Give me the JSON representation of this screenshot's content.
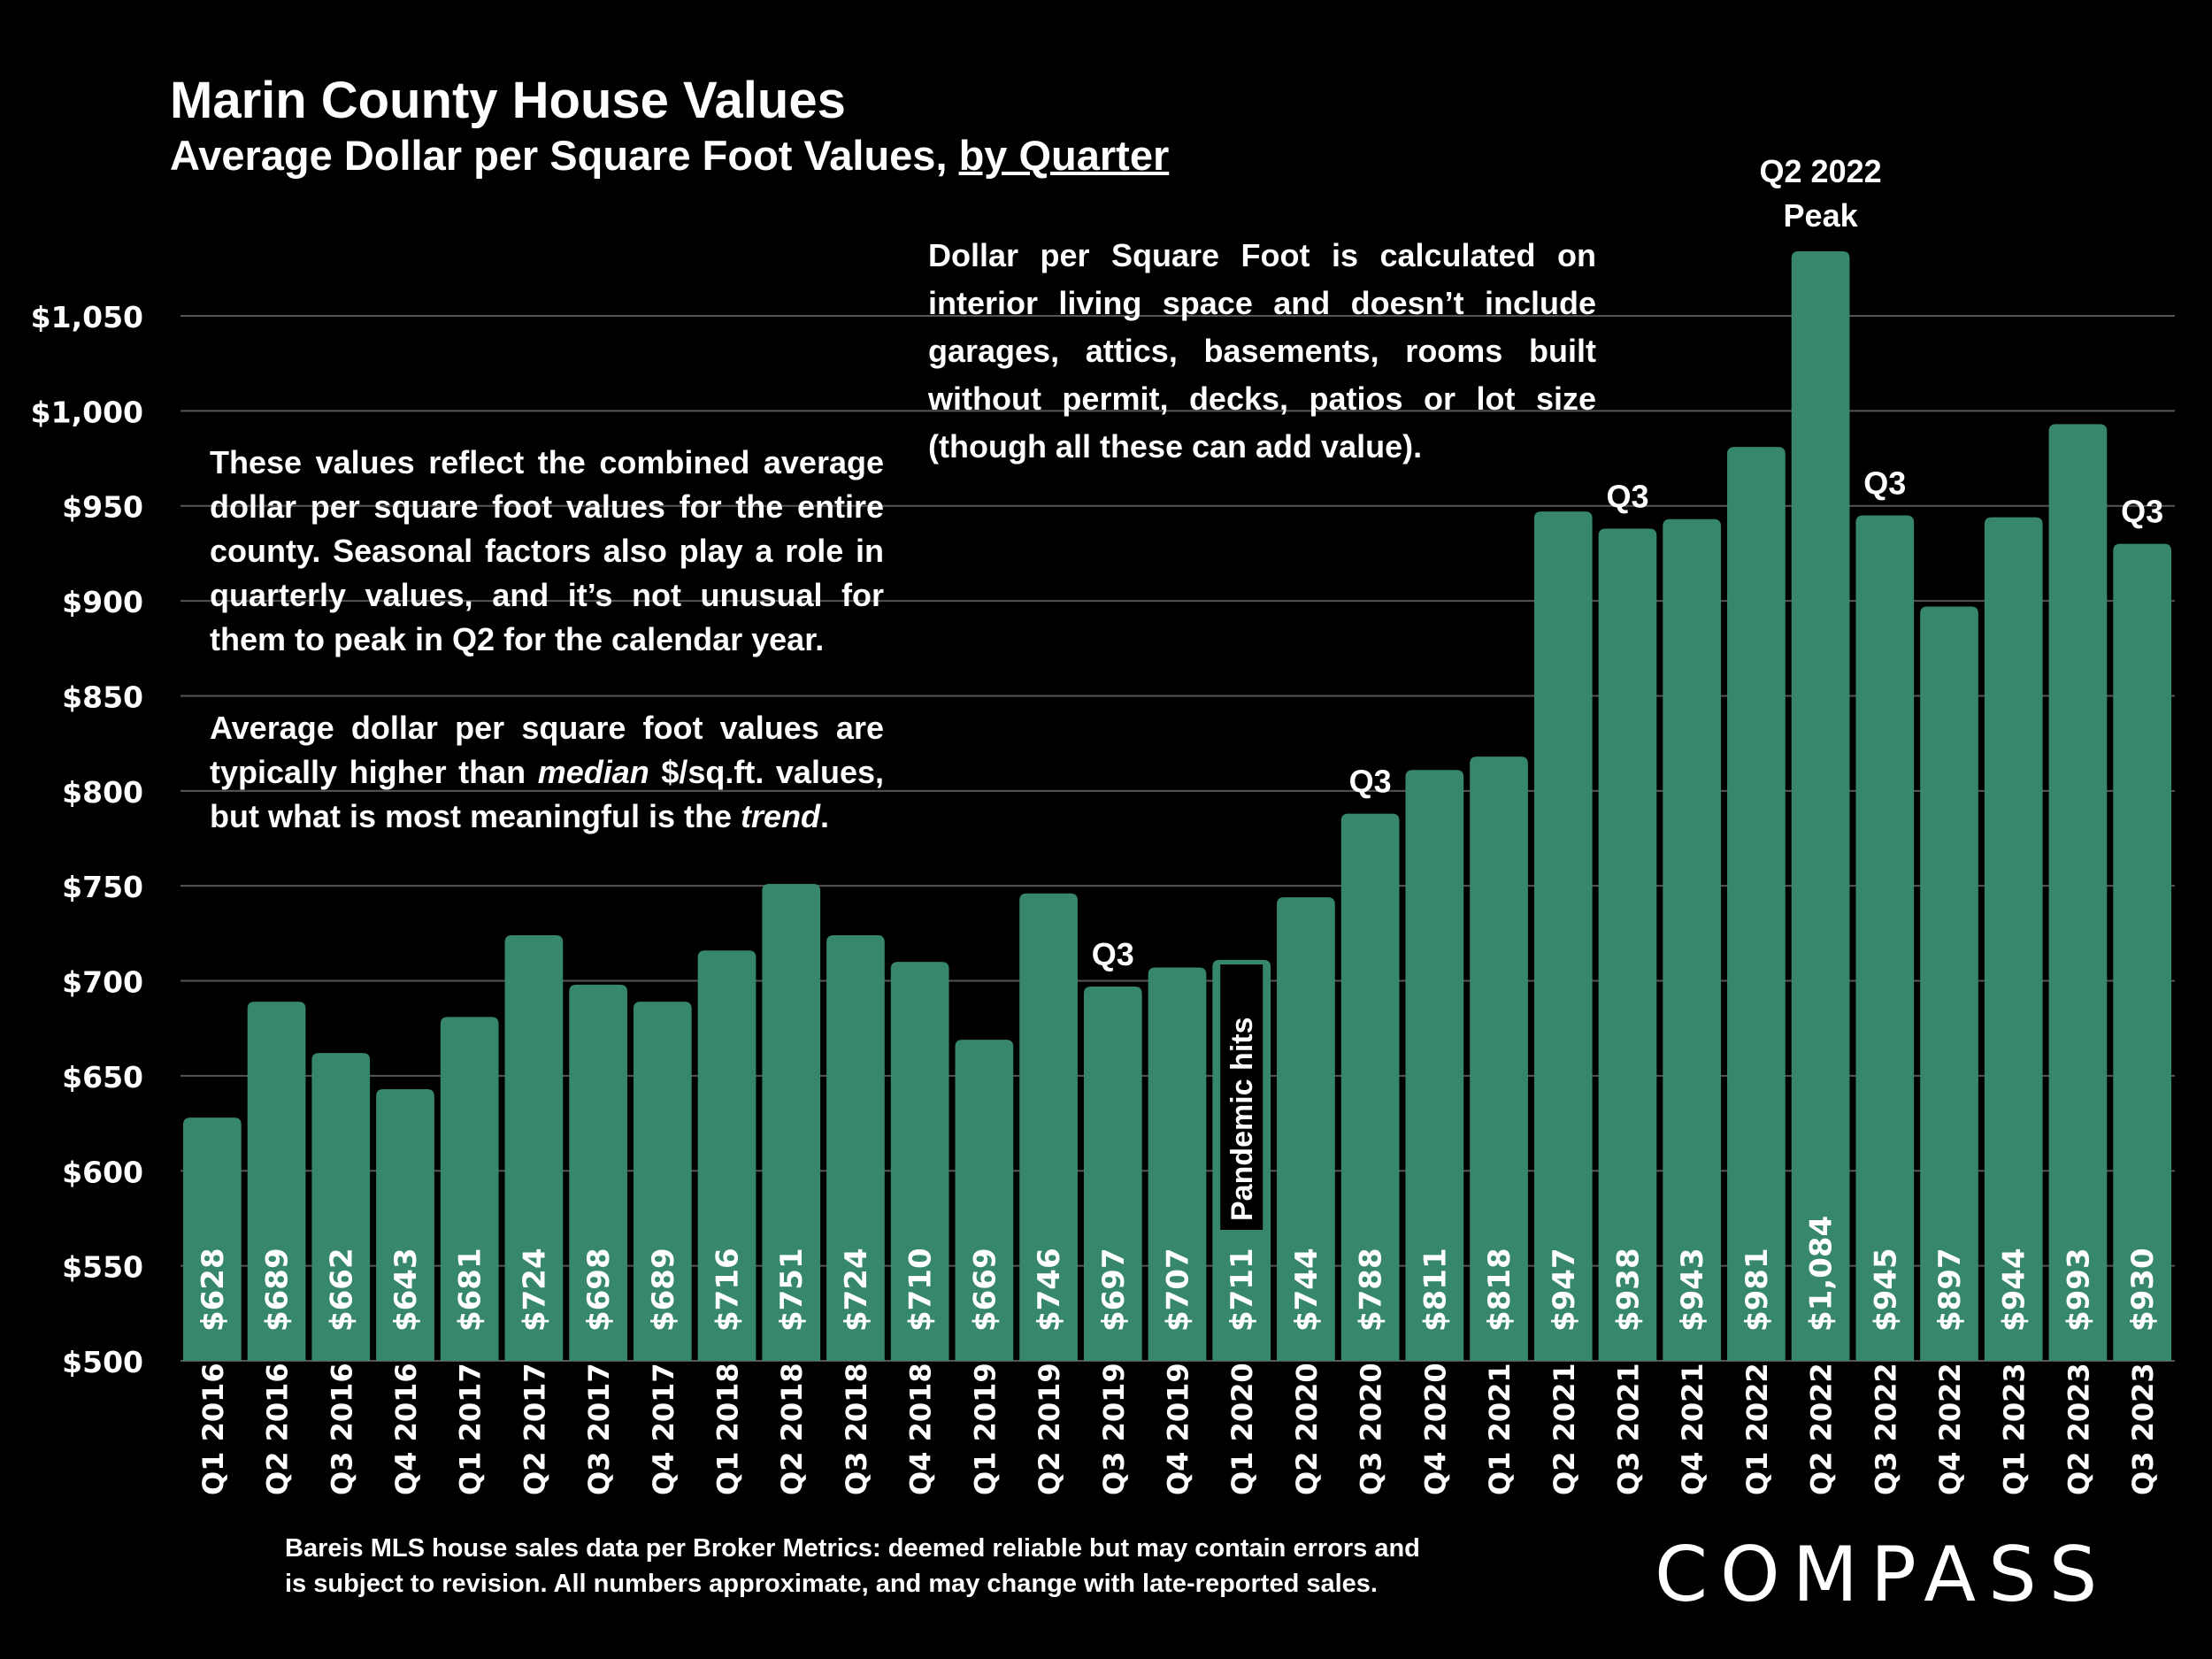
{
  "header": {
    "title": "Marin County House Values",
    "subtitle_main": "Average Dollar per Square Foot Values, ",
    "subtitle_underlined": "by Quarter"
  },
  "notes": {
    "left_p1": "These values reflect the combined average dollar per square foot values for the entire county. Seasonal factors also play a role in quarterly values, and it’s not unusual for them to peak in Q2 for the calendar year.",
    "left_p2_a": "Average dollar per square foot values are typically higher than ",
    "left_p2_em1": "median",
    "left_p2_b": " $/sq.ft. values, but what is most meaningful is the ",
    "left_p2_em2": "trend",
    "left_p2_c": ".",
    "right": "Dollar per Square Foot is calculated on interior living space and doesn’t include garages, attics, basements, rooms built without permit, decks, patios or lot size (though all these can add value)."
  },
  "footer": {
    "line1": "Bareis MLS house sales data per Broker Metrics:  deemed reliable but may contain errors and",
    "line2": "is subject to revision. All numbers approximate, and may change with late-reported sales."
  },
  "logo": "COMPASS",
  "colors": {
    "bar": "#37876C",
    "background": "#000000",
    "grid": "#555555",
    "text": "#FFFFFF"
  },
  "chart_data": {
    "type": "bar",
    "title": "Marin County House Values",
    "subtitle": "Average Dollar per Square Foot Values, by Quarter",
    "xlabel": "",
    "ylabel": "",
    "ylim": [
      500,
      1050
    ],
    "yticks": [
      500,
      550,
      600,
      650,
      700,
      750,
      800,
      850,
      900,
      950,
      1000,
      1050
    ],
    "ytick_labels": [
      "$500",
      "$550",
      "$600",
      "$650",
      "$700",
      "$750",
      "$800",
      "$850",
      "$900",
      "$950",
      "$1,000",
      "$1,050"
    ],
    "grid": true,
    "categories": [
      "Q1 2016",
      "Q2 2016",
      "Q3 2016",
      "Q4 2016",
      "Q1 2017",
      "Q2 2017",
      "Q3 2017",
      "Q4 2017",
      "Q1 2018",
      "Q2 2018",
      "Q3 2018",
      "Q4 2018",
      "Q1 2019",
      "Q2 2019",
      "Q3 2019",
      "Q4 2019",
      "Q1 2020",
      "Q2 2020",
      "Q3 2020",
      "Q4 2020",
      "Q1 2021",
      "Q2 2021",
      "Q3 2021",
      "Q4 2021",
      "Q1 2022",
      "Q2 2022",
      "Q3 2022",
      "Q4 2022",
      "Q1 2023",
      "Q2 2023",
      "Q3 2023"
    ],
    "values": [
      628,
      689,
      662,
      643,
      681,
      724,
      698,
      689,
      716,
      751,
      724,
      710,
      669,
      746,
      697,
      707,
      711,
      744,
      788,
      811,
      818,
      947,
      938,
      943,
      981,
      1084,
      945,
      897,
      944,
      993,
      930
    ],
    "data_labels": [
      "$628",
      "$689",
      "$662",
      "$643",
      "$681",
      "$724",
      "$698",
      "$689",
      "$716",
      "$751",
      "$724",
      "$710",
      "$669",
      "$746",
      "$697",
      "$707",
      "$711",
      "$744",
      "$788",
      "$811",
      "$818",
      "$947",
      "$938",
      "$943",
      "$981",
      "$1,084",
      "$945",
      "$897",
      "$944",
      "$993",
      "$930"
    ],
    "annotations": [
      {
        "category": "Q3 2019",
        "text": "Q3"
      },
      {
        "category": "Q3 2020",
        "text": "Q3"
      },
      {
        "category": "Q3 2021",
        "text": "Q3"
      },
      {
        "category": "Q2 2022",
        "text": "Q2 2022"
      },
      {
        "category": "Q2 2022",
        "text": "Peak"
      },
      {
        "category": "Q3 2022",
        "text": "Q3"
      },
      {
        "category": "Q3 2023",
        "text": "Q3"
      },
      {
        "category": "Q1 2020",
        "text": "Pandemic hits",
        "vertical": true
      }
    ]
  }
}
